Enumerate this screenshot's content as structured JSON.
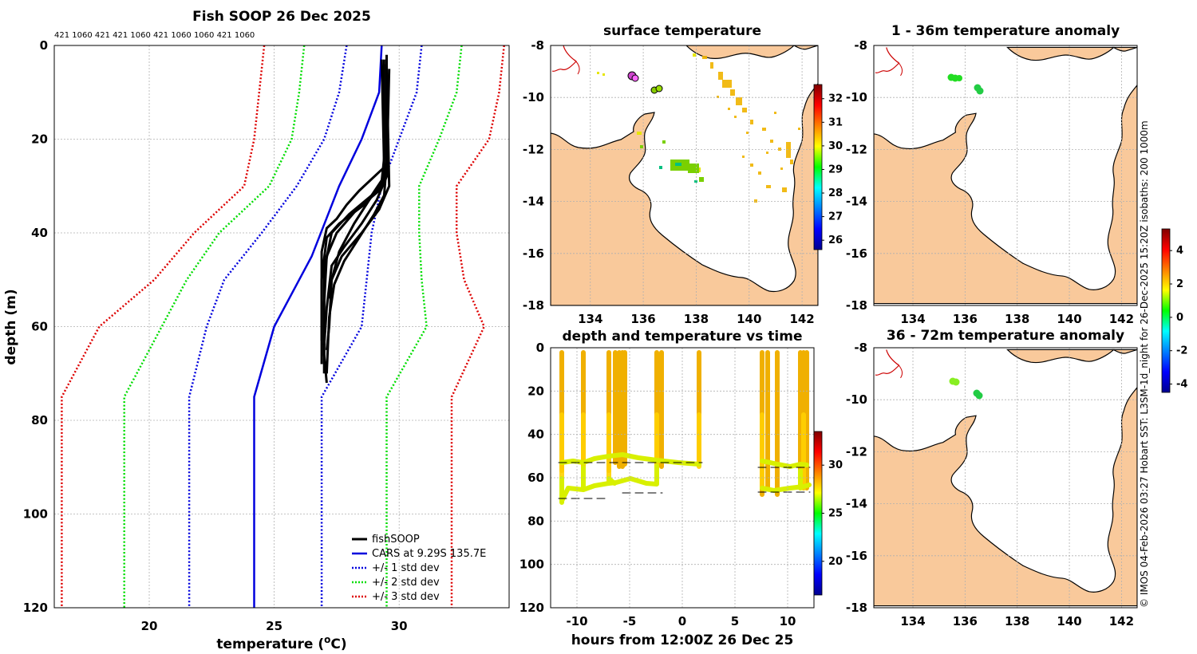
{
  "chart_data": [
    {
      "type": "line",
      "title": "Fish SOOP 26 Dec 2025",
      "top_annotation": "421 1060 421 421 1060 421 1060 1060 421 1060",
      "xlabel": "temperature (°C)",
      "xlabel_pre": "temperature (",
      "xlabel_sup": "o",
      "xlabel_post": "C)",
      "ylabel": "depth (m)",
      "xlim": [
        16.2,
        34.4
      ],
      "ylim": [
        0,
        120
      ],
      "xticks": [
        20,
        25,
        30
      ],
      "yticks": [
        0,
        20,
        40,
        60,
        80,
        100,
        120
      ],
      "legend": [
        "fishSOOP",
        "CARS at 9.29S 135.7E",
        "+/- 1 std dev",
        "+/- 2 std dev",
        "+/- 3 std dev"
      ],
      "series": [
        {
          "name": "CARS at 9.29S 135.7E",
          "color": "#0000dd",
          "style": "solid",
          "points": [
            [
              29.3,
              0
            ],
            [
              29.2,
              10
            ],
            [
              28.5,
              20
            ],
            [
              27.6,
              30
            ],
            [
              26.5,
              45
            ],
            [
              25.0,
              60
            ],
            [
              24.2,
              75
            ],
            [
              24.2,
              120
            ]
          ]
        },
        {
          "name": "+1 std dev",
          "color": "#0000dd",
          "style": "dotted",
          "points": [
            [
              30.9,
              0
            ],
            [
              30.7,
              10
            ],
            [
              30.0,
              20
            ],
            [
              29.3,
              30
            ],
            [
              28.9,
              40
            ],
            [
              28.7,
              50
            ],
            [
              28.5,
              60
            ],
            [
              26.9,
              75
            ],
            [
              26.9,
              120
            ]
          ]
        },
        {
          "name": "-1 std dev",
          "color": "#0000dd",
          "style": "dotted",
          "points": [
            [
              27.9,
              0
            ],
            [
              27.6,
              10
            ],
            [
              27.0,
              20
            ],
            [
              25.9,
              30
            ],
            [
              24.5,
              40
            ],
            [
              23.0,
              50
            ],
            [
              22.3,
              60
            ],
            [
              21.6,
              75
            ],
            [
              21.6,
              120
            ]
          ]
        },
        {
          "name": "+2 std dev",
          "color": "#00dd00",
          "style": "dotted",
          "points": [
            [
              32.5,
              0
            ],
            [
              32.3,
              10
            ],
            [
              31.6,
              20
            ],
            [
              30.8,
              30
            ],
            [
              30.8,
              40
            ],
            [
              30.9,
              50
            ],
            [
              31.1,
              60
            ],
            [
              29.5,
              75
            ],
            [
              29.5,
              120
            ]
          ]
        },
        {
          "name": "-2 std dev",
          "color": "#00dd00",
          "style": "dotted",
          "points": [
            [
              26.2,
              0
            ],
            [
              26.0,
              10
            ],
            [
              25.7,
              20
            ],
            [
              24.8,
              30
            ],
            [
              22.8,
              40
            ],
            [
              21.5,
              50
            ],
            [
              20.5,
              60
            ],
            [
              19.0,
              75
            ],
            [
              19.0,
              120
            ]
          ]
        },
        {
          "name": "+3 std dev",
          "color": "#dd0000",
          "style": "dotted",
          "points": [
            [
              34.2,
              0
            ],
            [
              34.0,
              10
            ],
            [
              33.6,
              20
            ],
            [
              32.3,
              30
            ],
            [
              32.3,
              40
            ],
            [
              32.6,
              50
            ],
            [
              33.4,
              60
            ],
            [
              32.1,
              75
            ],
            [
              32.1,
              120
            ]
          ]
        },
        {
          "name": "-3 std dev",
          "color": "#dd0000",
          "style": "dotted",
          "points": [
            [
              24.6,
              0
            ],
            [
              24.4,
              10
            ],
            [
              24.2,
              20
            ],
            [
              23.8,
              30
            ],
            [
              21.8,
              40
            ],
            [
              20.2,
              50
            ],
            [
              18.0,
              60
            ],
            [
              16.5,
              75
            ],
            [
              16.5,
              120
            ]
          ]
        }
      ]
    },
    {
      "type": "map",
      "title": "surface temperature",
      "xlim": [
        132.5,
        142.6
      ],
      "ylim": [
        -18,
        -8
      ],
      "xticks": [
        134,
        136,
        138,
        140,
        142
      ],
      "yticks": [
        -8,
        -10,
        -12,
        -14,
        -16,
        -18
      ],
      "colorbar": {
        "min": 25.6,
        "max": 32.6,
        "ticks": [
          26,
          27,
          28,
          29,
          30,
          31,
          32
        ]
      }
    },
    {
      "type": "map",
      "title": "1 - 36m temperature anomaly",
      "xlim": [
        132.5,
        142.6
      ],
      "ylim": [
        -18,
        -8
      ],
      "xticks": [
        134,
        136,
        138,
        140,
        142
      ],
      "yticks": [
        -8,
        -10,
        -12,
        -14,
        -16,
        -18
      ]
    },
    {
      "type": "scatter",
      "title": "depth and temperature vs time",
      "xlabel": "hours from 12:00Z 26 Dec 25",
      "xlim": [
        -12.5,
        12.5
      ],
      "ylim": [
        0,
        120
      ],
      "xticks": [
        -10,
        -5,
        0,
        5,
        10
      ],
      "yticks": [
        0,
        20,
        40,
        60,
        80,
        100,
        120
      ],
      "colorbar": {
        "min": 16.5,
        "max": 33.5,
        "ticks": [
          20,
          25,
          30
        ]
      }
    },
    {
      "type": "map",
      "title": "36 - 72m temperature anomaly",
      "xlim": [
        132.5,
        142.6
      ],
      "ylim": [
        -18,
        -8
      ],
      "xticks": [
        134,
        136,
        138,
        140,
        142
      ],
      "yticks": [
        -8,
        -10,
        -12,
        -14,
        -16,
        -18
      ],
      "colorbar": {
        "min": -4.5,
        "max": 5.3,
        "ticks": [
          -4,
          -2,
          0,
          2,
          4
        ]
      }
    }
  ],
  "credit": "© IMOS 04-Feb-2026 03:27 Hobart SST: L3SM-1d_night for 26-Dec-2025 15:20Z isobaths: 200  1000m"
}
